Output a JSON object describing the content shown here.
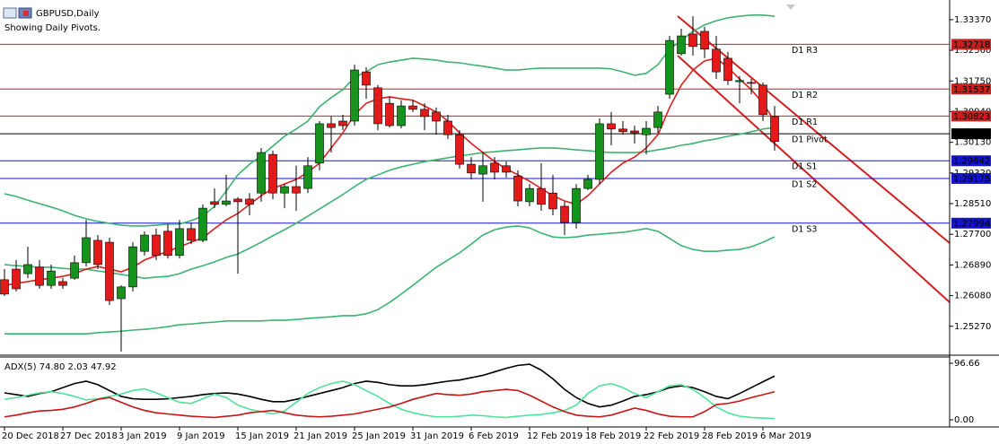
{
  "chart_data": [
    {
      "type": "candlestick",
      "title": "GBPUSD,Daily",
      "subtitle": "Showing Daily Pivots.",
      "categories": [
        "20 Dec 2018",
        null,
        null,
        null,
        null,
        "27 Dec 2018",
        null,
        null,
        null,
        null,
        "3 Jan 2019",
        null,
        null,
        null,
        null,
        "9 Jan 2019",
        null,
        null,
        null,
        null,
        "15 Jan 2019",
        null,
        null,
        null,
        null,
        "21 Jan 2019",
        null,
        null,
        null,
        null,
        "25 Jan 2019",
        null,
        null,
        null,
        null,
        "31 Jan 2019",
        null,
        null,
        null,
        null,
        "6 Feb 2019",
        null,
        null,
        null,
        null,
        "12 Feb 2019",
        null,
        null,
        null,
        null,
        "18 Feb 2019",
        null,
        null,
        null,
        null,
        "22 Feb 2019",
        null,
        null,
        null,
        null,
        "28 Feb 2019",
        null,
        null,
        null,
        null,
        "6 Mar 2019",
        null
      ],
      "open": [
        1.265,
        1.2678,
        1.2666,
        1.2683,
        1.2635,
        1.2645,
        1.2654,
        1.2695,
        1.2754,
        1.2749,
        1.26,
        1.2631,
        1.2725,
        1.2768,
        1.2778,
        1.2714,
        1.2785,
        1.2754,
        1.2856,
        1.2849,
        1.2863,
        1.2863,
        1.2879,
        1.2981,
        1.2879,
        1.2896,
        1.2891,
        1.2958,
        1.3062,
        1.3069,
        1.3069,
        1.3199,
        1.3157,
        1.3116,
        1.3057,
        1.3109,
        1.31,
        1.3093,
        1.3069,
        1.3033,
        1.2955,
        1.2929,
        1.2958,
        1.2951,
        1.2924,
        1.2856,
        1.2891,
        1.2879,
        1.2844,
        1.2801,
        1.2891,
        1.2915,
        1.3062,
        1.3048,
        1.3043,
        1.3033,
        1.3052,
        1.314,
        1.3247,
        1.3299,
        1.3306,
        1.3259,
        1.3235,
        1.3173,
        1.3171,
        1.3164,
        1.3081
      ],
      "high": [
        1.2678,
        1.2702,
        1.2737,
        1.2702,
        1.269,
        1.2654,
        1.2714,
        1.2808,
        1.2768,
        1.2761,
        1.2635,
        1.2749,
        1.2778,
        1.2785,
        1.2797,
        1.2808,
        1.2801,
        1.2849,
        1.2891,
        1.2927,
        1.2868,
        1.2879,
        1.2998,
        1.2991,
        1.2903,
        1.2951,
        1.2974,
        1.3069,
        1.3081,
        1.3086,
        1.3218,
        1.3211,
        1.3164,
        1.3133,
        1.3124,
        1.3124,
        1.3116,
        1.3105,
        1.3086,
        1.3045,
        1.2974,
        1.2986,
        1.2974,
        1.2962,
        1.2939,
        1.2903,
        1.2958,
        1.2927,
        1.2856,
        1.2903,
        1.2927,
        1.3076,
        1.3093,
        1.3069,
        1.3057,
        1.3069,
        1.3109,
        1.3294,
        1.3313,
        1.3346,
        1.3318,
        1.3294,
        1.3252,
        1.3188,
        1.318,
        1.3171,
        1.3109
      ],
      "low": [
        1.2607,
        1.2619,
        1.2654,
        1.2626,
        1.2626,
        1.2626,
        1.265,
        1.2685,
        1.2678,
        1.2583,
        1.246,
        1.2619,
        1.2714,
        1.2702,
        1.2706,
        1.2706,
        1.2744,
        1.2749,
        1.2839,
        1.2844,
        1.2666,
        1.282,
        1.2856,
        1.2863,
        1.2839,
        1.2832,
        1.2879,
        1.2939,
        1.2986,
        1.3045,
        1.3057,
        1.3128,
        1.3045,
        1.3052,
        1.305,
        1.3093,
        1.3045,
        1.3033,
        1.3022,
        1.2943,
        1.2915,
        1.2856,
        1.2915,
        1.292,
        1.2844,
        1.2844,
        1.2832,
        1.282,
        1.2768,
        1.2785,
        1.2887,
        1.2903,
        1.3005,
        1.3033,
        1.301,
        1.2981,
        1.3038,
        1.3128,
        1.3242,
        1.3242,
        1.3235,
        1.318,
        1.3164,
        1.3116,
        1.314,
        1.3069,
        1.2991
      ],
      "close": [
        1.2612,
        1.2626,
        1.269,
        1.2635,
        1.2673,
        1.2635,
        1.2695,
        1.2761,
        1.269,
        1.2595,
        1.2631,
        1.2737,
        1.2768,
        1.2714,
        1.2714,
        1.2785,
        1.2754,
        1.2839,
        1.2849,
        1.2858,
        1.2856,
        1.2849,
        1.2986,
        1.2879,
        1.2896,
        1.2879,
        1.2951,
        1.3062,
        1.3052,
        1.3057,
        1.3204,
        1.3164,
        1.3062,
        1.3057,
        1.3109,
        1.31,
        1.3081,
        1.3069,
        1.3033,
        1.2955,
        1.2932,
        1.2951,
        1.2934,
        1.2934,
        1.2858,
        1.2891,
        1.2849,
        1.2837,
        1.2801,
        1.2891,
        1.2915,
        1.3062,
        1.3048,
        1.3041,
        1.3038,
        1.305,
        1.3093,
        1.3282,
        1.3294,
        1.3266,
        1.3259,
        1.3199,
        1.3176,
        1.3176,
        1.3169,
        1.3086,
        1.3015
      ],
      "up_color": "#16931c",
      "down_color": "#e41a1a",
      "wick_color": "#000000",
      "series": [
        {
          "color": "#3cb371",
          "values": [
            1.2877,
            1.287,
            1.286,
            1.2851,
            1.2842,
            1.2832,
            1.282,
            1.2811,
            1.2804,
            1.2799,
            1.2794,
            1.2792,
            1.2792,
            1.2794,
            1.2797,
            1.2797,
            1.2806,
            1.2818,
            1.2844,
            1.2884,
            1.2927,
            1.2955,
            1.2977,
            1.3003,
            1.3029,
            1.3048,
            1.3069,
            1.3107,
            1.3131,
            1.3152,
            1.3185,
            1.3199,
            1.3218,
            1.3225,
            1.323,
            1.3235,
            1.3233,
            1.323,
            1.3225,
            1.3223,
            1.3218,
            1.3214,
            1.3209,
            1.3204,
            1.3204,
            1.3207,
            1.3209,
            1.3209,
            1.3209,
            1.3209,
            1.3209,
            1.3209,
            1.3207,
            1.3199,
            1.319,
            1.3195,
            1.3218,
            1.3259,
            1.3282,
            1.3306,
            1.3323,
            1.3334,
            1.3342,
            1.3346,
            1.3349,
            1.3349,
            1.3346
          ]
        },
        {
          "color": "#3cb371",
          "values": [
            1.269,
            1.2687,
            1.2685,
            1.2683,
            1.2683,
            1.268,
            1.2678,
            1.2678,
            1.2673,
            1.2669,
            1.2664,
            1.2659,
            1.2654,
            1.2657,
            1.2659,
            1.2666,
            1.2678,
            1.2687,
            1.2697,
            1.2709,
            1.2718,
            1.2733,
            1.2749,
            1.2766,
            1.2782,
            1.2799,
            1.2818,
            1.2837,
            1.2856,
            1.2875,
            1.2896,
            1.2915,
            1.2927,
            1.2939,
            1.2948,
            1.2955,
            1.2962,
            1.2967,
            1.2972,
            1.2977,
            1.2981,
            1.2986,
            1.2988,
            1.2991,
            1.2993,
            1.2996,
            1.2998,
            1.2998,
            1.2996,
            1.2993,
            1.2991,
            1.2988,
            1.2986,
            1.2986,
            1.2986,
            1.2988,
            1.2993,
            1.2998,
            1.3005,
            1.301,
            1.3017,
            1.3022,
            1.3029,
            1.3034,
            1.3041,
            1.3048,
            1.3052
          ]
        },
        {
          "color": "#3cb371",
          "values": [
            1.2507,
            1.2507,
            1.2507,
            1.2507,
            1.2507,
            1.2507,
            1.2507,
            1.2507,
            1.251,
            1.2512,
            1.2514,
            1.2517,
            1.2519,
            1.2522,
            1.2526,
            1.2531,
            1.2533,
            1.2536,
            1.2538,
            1.2541,
            1.2541,
            1.2541,
            1.2541,
            1.2543,
            1.2543,
            1.2545,
            1.2548,
            1.255,
            1.2552,
            1.2555,
            1.2555,
            1.256,
            1.2571,
            1.259,
            1.2612,
            1.2635,
            1.2659,
            1.2683,
            1.2702,
            1.2721,
            1.2744,
            1.2768,
            1.2782,
            1.2789,
            1.2792,
            1.2787,
            1.2773,
            1.2763,
            1.2761,
            1.2763,
            1.2768,
            1.277,
            1.2773,
            1.2775,
            1.278,
            1.2785,
            1.2778,
            1.2759,
            1.274,
            1.273,
            1.2725,
            1.2725,
            1.2728,
            1.273,
            1.2737,
            1.2749,
            1.2763
          ]
        },
        {
          "color": "#dc1e1e",
          "values": [
            1.2635,
            1.264,
            1.2645,
            1.265,
            1.2654,
            1.2659,
            1.2666,
            1.2678,
            1.2685,
            1.2678,
            1.2671,
            1.2683,
            1.2702,
            1.2714,
            1.2725,
            1.2737,
            1.2749,
            1.2761,
            1.2785,
            1.2808,
            1.2825,
            1.2849,
            1.2872,
            1.2891,
            1.2903,
            1.2915,
            1.2934,
            1.2958,
            1.2998,
            1.3038,
            1.3086,
            1.3116,
            1.3128,
            1.3133,
            1.3128,
            1.3124,
            1.3109,
            1.3093,
            1.3069,
            1.3038,
            1.301,
            1.2986,
            1.2962,
            1.2943,
            1.2927,
            1.291,
            1.2891,
            1.2872,
            1.2858,
            1.2849,
            1.2872,
            1.2903,
            1.2934,
            1.2958,
            1.2974,
            1.2998,
            1.3033,
            1.3105,
            1.3164,
            1.3204,
            1.3228,
            1.3235,
            1.3211,
            1.318,
            1.3152,
            1.3116,
            1.3069
          ]
        }
      ],
      "levels": [
        {
          "label": "D1 R3",
          "value": 1.32718,
          "color": "#c81e1e"
        },
        {
          "label": "D1 R2",
          "value": 1.31537,
          "color": "#c81e1e"
        },
        {
          "label": "D1 R1",
          "value": 1.30823,
          "color": "#c81e1e"
        },
        {
          "label": "D1 Pivot",
          "value": 1.30356,
          "color": "#000000"
        },
        {
          "label": "D1 S1",
          "value": 1.29642,
          "color": "#1414c8"
        },
        {
          "label": "D1 S2",
          "value": 1.29175,
          "color": "#1414c8"
        },
        {
          "label": "D1 S3",
          "value": 1.27994,
          "color": "#1414c8"
        }
      ],
      "ylim": [
        1.2453,
        1.3377
      ],
      "yticks": [
        {
          "value": 1.3337,
          "label": "1.33370"
        },
        {
          "value": 1.3256,
          "label": "1.32560"
        },
        {
          "value": 1.3175,
          "label": "1.31750"
        },
        {
          "value": 1.3094,
          "label": "1.30940"
        },
        {
          "value": 1.3013,
          "label": "1.30130"
        },
        {
          "value": 1.2932,
          "label": "1.29320"
        },
        {
          "value": 1.2851,
          "label": "1.28510"
        },
        {
          "value": 1.277,
          "label": "1.27700"
        },
        {
          "value": 1.2689,
          "label": "1.26890"
        },
        {
          "value": 1.2608,
          "label": "1.26080"
        },
        {
          "value": 1.2527,
          "label": "1.25270"
        }
      ],
      "grid": false
    },
    {
      "type": "line",
      "title": "ADX(5) 74.80 2.03 47.92",
      "series": [
        {
          "color": "#000000",
          "values": [
            46,
            43,
            40,
            45,
            48,
            55,
            62,
            66,
            60,
            50,
            40,
            36,
            35,
            35,
            36,
            38,
            40,
            43,
            45,
            46,
            44,
            40,
            35,
            31,
            31,
            35,
            40,
            45,
            50,
            55,
            62,
            66,
            64,
            60,
            58,
            58,
            60,
            63,
            66,
            68,
            72,
            76,
            82,
            88,
            93,
            95,
            85,
            70,
            52,
            38,
            28,
            22,
            25,
            32,
            40,
            43,
            48,
            55,
            58,
            55,
            48,
            40,
            36,
            45,
            55,
            65,
            74.8
          ]
        },
        {
          "color": "#4ee29a",
          "values": [
            35,
            38,
            42,
            46,
            48,
            45,
            40,
            34,
            36,
            40,
            44,
            50,
            53,
            46,
            38,
            30,
            28,
            36,
            44,
            38,
            25,
            18,
            14,
            10,
            15,
            30,
            45,
            55,
            62,
            66,
            60,
            50,
            40,
            28,
            18,
            12,
            8,
            5,
            5,
            6,
            8,
            7,
            5,
            4,
            6,
            8,
            9,
            12,
            16,
            25,
            45,
            58,
            62,
            55,
            45,
            38,
            48,
            58,
            60,
            52,
            38,
            22,
            12,
            6,
            4,
            3,
            2.03
          ]
        },
        {
          "color": "#c81414",
          "values": [
            5,
            8,
            12,
            15,
            16,
            18,
            22,
            28,
            35,
            38,
            30,
            22,
            16,
            12,
            10,
            8,
            6,
            5,
            4,
            6,
            8,
            12,
            14,
            16,
            12,
            8,
            6,
            5,
            6,
            8,
            10,
            14,
            18,
            22,
            28,
            35,
            40,
            45,
            43,
            42,
            44,
            48,
            50,
            52,
            50,
            42,
            32,
            22,
            14,
            8,
            6,
            5,
            8,
            14,
            20,
            16,
            10,
            6,
            5,
            5,
            14,
            26,
            28,
            32,
            38,
            43,
            47.92
          ]
        }
      ],
      "ylim": [
        -9.2,
        107.4
      ],
      "yticks": [
        96.66,
        {
          "value": 0,
          "label": "0.00"
        }
      ],
      "grid": false
    }
  ]
}
